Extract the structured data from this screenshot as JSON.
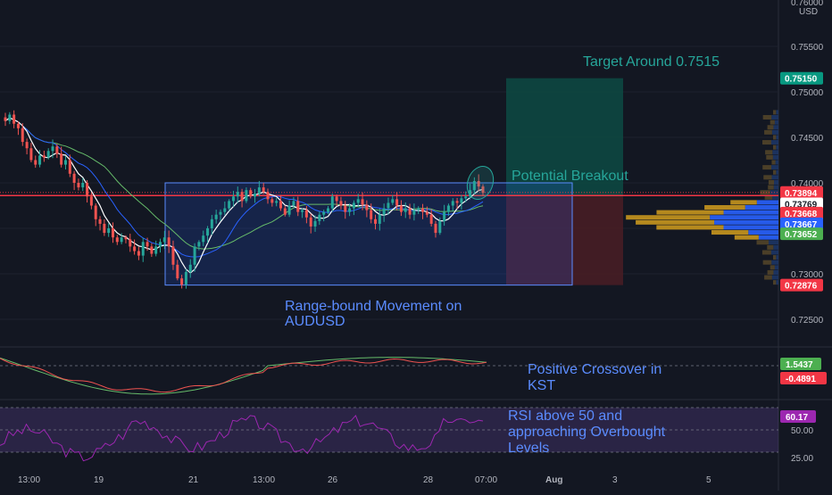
{
  "chart_data": {
    "type": "candlestick",
    "symbol": "AUDUSD",
    "currency": "USD",
    "x_ticks": [
      "13:00",
      "19",
      "21",
      "13:00",
      "26",
      "28",
      "07:00",
      "Aug",
      "3",
      "5"
    ],
    "price_axis": {
      "ylim": [
        0.7225,
        0.76
      ],
      "ticks": [
        "0.76000",
        "0.75500",
        "0.75000",
        "0.74500",
        "0.74000",
        "0.73500",
        "0.73000",
        "0.72500"
      ],
      "tick_values": [
        0.76,
        0.755,
        0.75,
        0.745,
        0.74,
        0.735,
        0.73,
        0.725
      ],
      "top_label": "0.76000",
      "currency_label": "USD"
    },
    "badges": [
      {
        "label": "0.75150",
        "value": 0.7515,
        "color": "#089981"
      },
      {
        "label": "0.73894",
        "value": 0.73894,
        "color": "#f23645"
      },
      {
        "label": "01:57:54",
        "value": 0.7376,
        "color": "#f23645"
      },
      {
        "label": "0.73860",
        "value": 0.7361,
        "color": "#ffffff"
      },
      {
        "label": "0.73769",
        "value": 0.73769,
        "color": "#ffffff"
      },
      {
        "label": "0.73668",
        "value": 0.73668,
        "color": "#f23645"
      },
      {
        "label": "0.73667",
        "value": 0.7355,
        "color": "#2962ff"
      },
      {
        "label": "0.73652",
        "value": 0.7344,
        "color": "#4caf50"
      },
      {
        "label": "0.72876",
        "value": 0.72876,
        "color": "#f23645"
      }
    ],
    "range_box": {
      "top": 0.74,
      "bottom": 0.72876,
      "label": "Range-bound Movement on AUDUSD"
    },
    "position": {
      "entry": 0.7385,
      "target": 0.7515,
      "stop": 0.72876
    },
    "horizontal_line": {
      "value": 0.7386,
      "color": "#f23645"
    },
    "annotations": {
      "target": "Target Around 0.7515",
      "breakout": "Potential Breakout",
      "range": "Range-bound Movement on AUDUSD",
      "kst": "Positive Crossover in KST",
      "rsi": "RSI above 50 and approaching Overbought Levels"
    },
    "candles_close": [
      0.7468,
      0.7475,
      0.7465,
      0.746,
      0.7445,
      0.7438,
      0.7425,
      0.742,
      0.743,
      0.7428,
      0.7435,
      0.744,
      0.7432,
      0.742,
      0.7425,
      0.741,
      0.74,
      0.7395,
      0.74,
      0.7385,
      0.7375,
      0.736,
      0.7355,
      0.7345,
      0.735,
      0.734,
      0.7335,
      0.734,
      0.7338,
      0.733,
      0.7325,
      0.732,
      0.7335,
      0.733,
      0.7322,
      0.733,
      0.7335,
      0.734,
      0.733,
      0.731,
      0.7295,
      0.7288,
      0.7302,
      0.731,
      0.733,
      0.7335,
      0.7342,
      0.735,
      0.736,
      0.7365,
      0.7368,
      0.7372,
      0.738,
      0.7385,
      0.739,
      0.738,
      0.7392,
      0.7385,
      0.7388,
      0.7395,
      0.739,
      0.7382,
      0.7378,
      0.738,
      0.7372,
      0.7365,
      0.7375,
      0.738,
      0.7368,
      0.737,
      0.7362,
      0.7352,
      0.7358,
      0.7365,
      0.7368,
      0.7372,
      0.7385,
      0.738,
      0.7375,
      0.7368,
      0.7372,
      0.7378,
      0.7382,
      0.7376,
      0.737,
      0.736,
      0.7355,
      0.7365,
      0.7372,
      0.7378,
      0.7382,
      0.7375,
      0.7368,
      0.7372,
      0.7365,
      0.737,
      0.7372,
      0.7368,
      0.7365,
      0.7355,
      0.7345,
      0.7358,
      0.7368,
      0.7375,
      0.738,
      0.7378,
      0.7383,
      0.7385,
      0.7392,
      0.7402,
      0.7396,
      0.7389
    ],
    "kst": {
      "signal_label": "1.5437",
      "kst_label": "-0.4891"
    },
    "rsi": {
      "value": 60.17,
      "label": "60.17",
      "levels": [
        "50.00",
        "25.00"
      ]
    }
  },
  "colors": {
    "up": "#26a69a",
    "down": "#ef5350",
    "ma_fast": "#ffffff",
    "ma_mid": "#2962ff",
    "ma_slow": "#66bb6a",
    "range": "#2962ff",
    "kst": "#ef5350",
    "kst_signal": "#66bb6a",
    "rsi": "#9c27b0"
  }
}
